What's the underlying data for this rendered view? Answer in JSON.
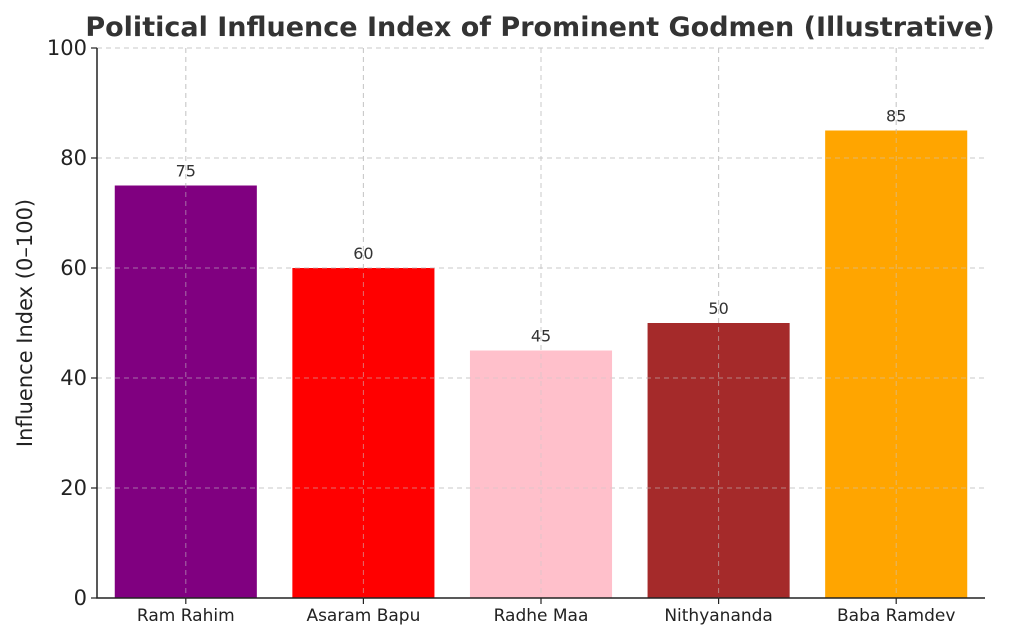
{
  "chart_data": {
    "type": "bar",
    "title": "Political Influence Index of Prominent Godmen (Illustrative)",
    "xlabel": "",
    "ylabel": "Influence Index (0–100)",
    "ylim": [
      0,
      100
    ],
    "yticks": [
      0,
      20,
      40,
      60,
      80,
      100
    ],
    "grid": true,
    "categories": [
      "Ram Rahim",
      "Asaram Bapu",
      "Radhe Maa",
      "Nithyananda",
      "Baba Ramdev"
    ],
    "values": [
      75,
      60,
      45,
      50,
      85
    ],
    "colors": [
      "#800080",
      "#ff0000",
      "#ffc0cb",
      "#a52a2a",
      "#ffa500"
    ]
  }
}
